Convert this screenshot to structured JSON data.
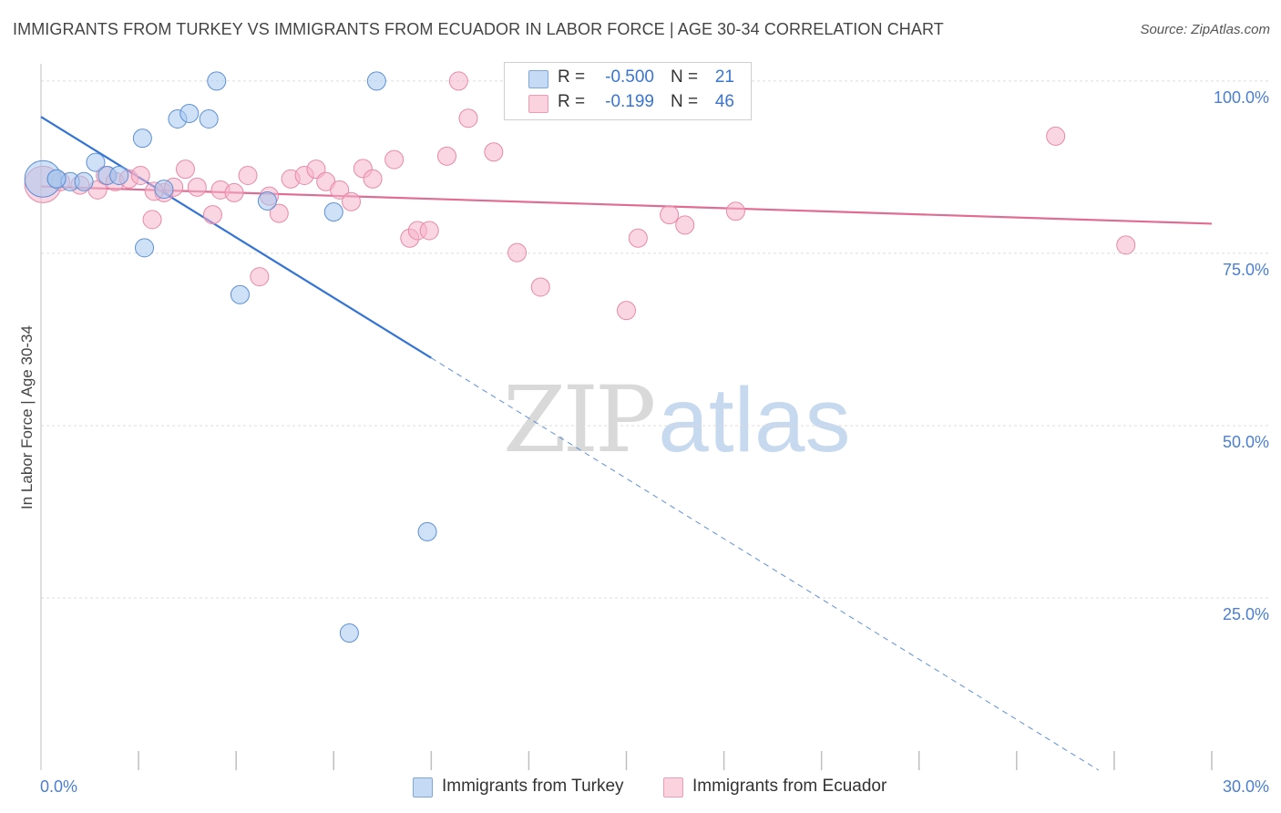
{
  "title": "IMMIGRANTS FROM TURKEY VS IMMIGRANTS FROM ECUADOR IN LABOR FORCE | AGE 30-34 CORRELATION CHART",
  "source": "Source: ZipAtlas.com",
  "watermark": {
    "zip": "ZIP",
    "atlas": "atlas"
  },
  "legend": {
    "rows": [
      {
        "r_label": "R =",
        "r_value": "-0.500",
        "n_label": "N =",
        "n_value": "21",
        "color": "#a8c8ef"
      },
      {
        "r_label": "R =",
        "r_value": "-0.199",
        "n_label": "N =",
        "n_value": "46",
        "color": "#f6b5ca"
      }
    ]
  },
  "bottom_legend": [
    "Immigrants from Turkey",
    "Immigrants from Ecuador"
  ],
  "chart_data": {
    "type": "scatter",
    "title": "IMMIGRANTS FROM TURKEY VS IMMIGRANTS FROM ECUADOR IN LABOR FORCE | AGE 30-34 CORRELATION CHART",
    "xlabel": "",
    "ylabel": "In Labor Force | Age 30-34",
    "xlim": [
      0,
      30
    ],
    "ylim": [
      0,
      102.5
    ],
    "x_tick_labels": [
      {
        "value": 0,
        "label": "0.0%"
      },
      {
        "value": 30,
        "label": "30.0%"
      }
    ],
    "y_ticks": [
      {
        "value": 25,
        "label": "25.0%"
      },
      {
        "value": 50,
        "label": "50.0%"
      },
      {
        "value": 75,
        "label": "75.0%"
      },
      {
        "value": 100,
        "label": "100.0%"
      }
    ],
    "series": [
      {
        "name": "Immigrants from Turkey",
        "color": "#a8c8ef",
        "stroke": "#5b8fd6",
        "line_color": "#3474d4",
        "trend": {
          "x_start": 0,
          "y_start": 94.8,
          "x_solid_end": 10,
          "x_end": 27.1,
          "y_end": 0
        },
        "points": [
          [
            0.05,
            85.8,
            28
          ],
          [
            0.4,
            85.8,
            10
          ],
          [
            0.75,
            85.4,
            10
          ],
          [
            1.1,
            85.4,
            10
          ],
          [
            1.4,
            88.2,
            10
          ],
          [
            1.7,
            86.3,
            10
          ],
          [
            2.0,
            86.3,
            10
          ],
          [
            2.6,
            91.7,
            10
          ],
          [
            2.65,
            75.8,
            10
          ],
          [
            3.15,
            84.3,
            10
          ],
          [
            3.5,
            94.5,
            10
          ],
          [
            3.8,
            95.3,
            10
          ],
          [
            4.3,
            94.5,
            10
          ],
          [
            4.5,
            100.0,
            10
          ],
          [
            5.1,
            69.0,
            10
          ],
          [
            5.8,
            82.6,
            10
          ],
          [
            7.5,
            81.0,
            10
          ],
          [
            7.9,
            19.9,
            10
          ],
          [
            8.6,
            100.0,
            10
          ],
          [
            9.9,
            34.6,
            10
          ],
          [
            0.4,
            85.8,
            10
          ]
        ]
      },
      {
        "name": "Immigrants from Ecuador",
        "color": "#f6b5ca",
        "stroke": "#e889a8",
        "line_color": "#e06c94",
        "trend": {
          "x_start": 0,
          "y_start": 84.7,
          "x_solid_end": 30,
          "x_end": 30,
          "y_end": 79.3
        },
        "points": [
          [
            0.05,
            85.0,
            28
          ],
          [
            0.5,
            85.4,
            10
          ],
          [
            1.0,
            84.9,
            10
          ],
          [
            1.45,
            84.2,
            10
          ],
          [
            1.65,
            86.3,
            10
          ],
          [
            1.9,
            85.4,
            10
          ],
          [
            2.25,
            85.8,
            10
          ],
          [
            2.55,
            86.3,
            10
          ],
          [
            2.85,
            79.9,
            10
          ],
          [
            3.15,
            83.8,
            10
          ],
          [
            3.4,
            84.6,
            10
          ],
          [
            3.7,
            87.2,
            10
          ],
          [
            4.0,
            84.6,
            10
          ],
          [
            4.4,
            80.6,
            10
          ],
          [
            4.6,
            84.2,
            10
          ],
          [
            4.95,
            83.8,
            10
          ],
          [
            5.3,
            86.3,
            10
          ],
          [
            5.6,
            71.6,
            10
          ],
          [
            5.85,
            83.3,
            10
          ],
          [
            6.1,
            80.8,
            10
          ],
          [
            6.4,
            85.8,
            10
          ],
          [
            6.75,
            86.3,
            10
          ],
          [
            7.05,
            87.2,
            10
          ],
          [
            7.3,
            85.4,
            10
          ],
          [
            7.65,
            84.2,
            10
          ],
          [
            7.95,
            82.5,
            10
          ],
          [
            8.25,
            87.3,
            10
          ],
          [
            8.5,
            85.8,
            10
          ],
          [
            9.05,
            88.6,
            10
          ],
          [
            9.45,
            77.2,
            10
          ],
          [
            9.65,
            78.3,
            10
          ],
          [
            9.95,
            78.3,
            10
          ],
          [
            10.4,
            89.1,
            10
          ],
          [
            10.7,
            100.0,
            10
          ],
          [
            10.95,
            94.6,
            10
          ],
          [
            11.6,
            89.7,
            10
          ],
          [
            12.2,
            75.1,
            10
          ],
          [
            12.8,
            70.1,
            10
          ],
          [
            15.0,
            66.7,
            10
          ],
          [
            15.3,
            77.2,
            10
          ],
          [
            16.1,
            80.6,
            10
          ],
          [
            16.5,
            79.1,
            10
          ],
          [
            17.8,
            81.1,
            10
          ],
          [
            26.0,
            92.0,
            10
          ],
          [
            27.8,
            76.2,
            10
          ],
          [
            2.9,
            84.0,
            10
          ]
        ]
      }
    ]
  }
}
